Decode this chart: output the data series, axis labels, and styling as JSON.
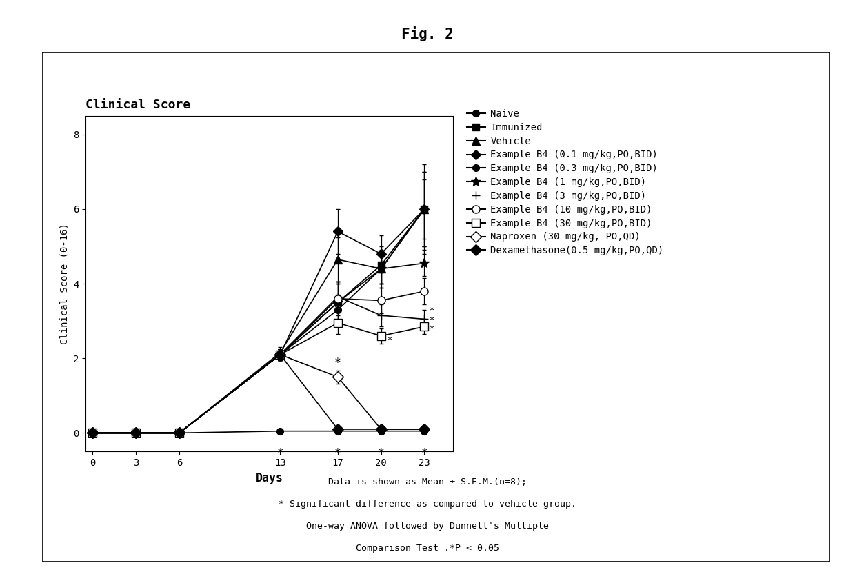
{
  "title": "Fig. 2",
  "plot_title": "Clinical Score",
  "xlabel": "Days",
  "ylabel": "Clinical Score (0-16)",
  "xlim": [
    -0.5,
    25
  ],
  "ylim": [
    -0.5,
    8.5
  ],
  "xticks": [
    0,
    3,
    6,
    13,
    17,
    20,
    23
  ],
  "yticks": [
    0,
    2,
    4,
    6,
    8
  ],
  "days": [
    0,
    3,
    6,
    13,
    17,
    20,
    23
  ],
  "series": [
    {
      "label": "Naive",
      "marker": "o",
      "fillstyle": "full",
      "markersize": 7,
      "y": [
        0,
        0,
        0,
        0.05,
        0.05,
        0.05,
        0.05
      ],
      "yerr": [
        0,
        0,
        0,
        0.03,
        0.03,
        0.03,
        0.03
      ]
    },
    {
      "label": "Immunized",
      "marker": "s",
      "fillstyle": "full",
      "markersize": 7,
      "y": [
        0,
        0,
        0,
        2.1,
        3.5,
        4.5,
        6.0
      ],
      "yerr": [
        0,
        0,
        0,
        0.15,
        0.5,
        0.5,
        1.2
      ]
    },
    {
      "label": "Vehicle",
      "marker": "^",
      "fillstyle": "full",
      "markersize": 8,
      "y": [
        0,
        0,
        0,
        2.15,
        4.65,
        4.4,
        6.0
      ],
      "yerr": [
        0,
        0,
        0,
        0.15,
        0.6,
        0.5,
        1.0
      ]
    },
    {
      "label": "Example B4 (0.1 mg/kg,PO,BID)",
      "marker": "D",
      "fillstyle": "full",
      "markersize": 7,
      "y": [
        0,
        0,
        0,
        2.1,
        5.4,
        4.8,
        6.0
      ],
      "yerr": [
        0,
        0,
        0,
        0.15,
        0.6,
        0.5,
        1.0
      ]
    },
    {
      "label": "Example B4 (0.3 mg/kg,PO,BID)",
      "marker": "o",
      "fillstyle": "full",
      "markersize": 7,
      "y": [
        0,
        0,
        0,
        2.1,
        3.3,
        4.4,
        6.0
      ],
      "yerr": [
        0,
        0,
        0,
        0.15,
        0.4,
        0.4,
        0.8
      ]
    },
    {
      "label": "Example B4 (1 mg/kg,PO,BID)",
      "marker": "*",
      "fillstyle": "full",
      "markersize": 10,
      "y": [
        0,
        0,
        0,
        2.1,
        3.5,
        4.4,
        4.55
      ],
      "yerr": [
        0,
        0,
        0,
        0.15,
        0.5,
        0.4,
        0.35
      ]
    },
    {
      "label": "Example B4 (3 mg/kg,PO,BID)",
      "marker": "+",
      "fillstyle": "full",
      "markersize": 9,
      "y": [
        0,
        0,
        0,
        2.1,
        3.65,
        3.15,
        3.05
      ],
      "yerr": [
        0,
        0,
        0,
        0.15,
        0.4,
        0.3,
        0.25
      ]
    },
    {
      "label": "Example B4 (10 mg/kg,PO,BID)",
      "marker": "o",
      "fillstyle": "none",
      "markersize": 8,
      "y": [
        0,
        0,
        0,
        2.1,
        3.6,
        3.55,
        3.8
      ],
      "yerr": [
        0,
        0,
        0,
        0.15,
        0.45,
        0.35,
        0.35
      ]
    },
    {
      "label": "Example B4 (30 mg/kg,PO,BID)",
      "marker": "s",
      "fillstyle": "none",
      "markersize": 8,
      "y": [
        0,
        0,
        0,
        2.1,
        2.95,
        2.6,
        2.85
      ],
      "yerr": [
        0,
        0,
        0,
        0.15,
        0.3,
        0.2,
        0.2
      ]
    },
    {
      "label": "Naproxen (30 mg/kg, PO,QD)",
      "marker": "D",
      "fillstyle": "none",
      "markersize": 8,
      "y": [
        0,
        0,
        0,
        2.1,
        1.5,
        0.1,
        0.1
      ],
      "yerr": [
        0,
        0,
        0,
        0.15,
        0.18,
        0.05,
        0.05
      ]
    },
    {
      "label": "Dexamethasone(0.5 mg/kg,PO,QD)",
      "marker": "D",
      "fillstyle": "full",
      "markersize": 8,
      "y": [
        0,
        0,
        0,
        2.1,
        0.1,
        0.1,
        0.1
      ],
      "yerr": [
        0,
        0,
        0,
        0.15,
        0.05,
        0.05,
        0.05
      ]
    }
  ],
  "footnote_lines": [
    "Data is shown as Mean ± S.E.M.(n=8);",
    "* Significant difference as compared to vehicle group.",
    "One-way ANOVA followed by Dunnett's Multiple",
    "Comparison Test .*P < 0.05"
  ],
  "background_color": "#ffffff"
}
